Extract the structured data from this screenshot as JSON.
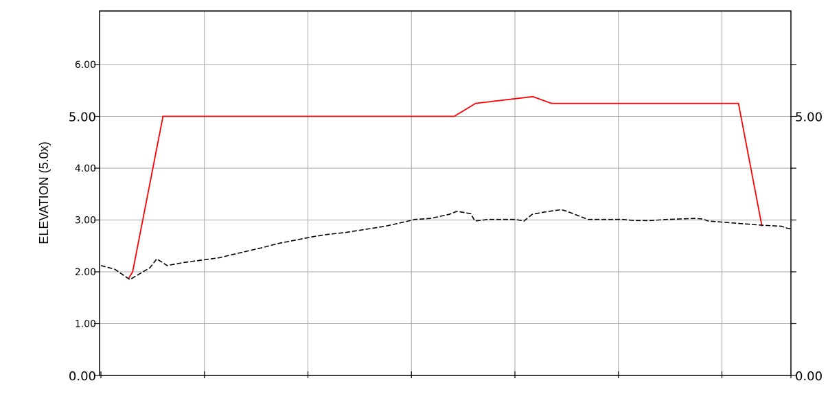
{
  "chart_data": {
    "type": "line",
    "ylabel": "ELEVATION (5.0x)",
    "xlim": [
      0,
      100
    ],
    "ylim": [
      0,
      7
    ],
    "grid": true,
    "left_ticks": [
      {
        "value": 0,
        "label": "0.00",
        "size": "big"
      },
      {
        "value": 1,
        "label": "1.00",
        "size": "small"
      },
      {
        "value": 2,
        "label": "2.00",
        "size": "small"
      },
      {
        "value": 3,
        "label": "3.00",
        "size": "small"
      },
      {
        "value": 4,
        "label": "4.00",
        "size": "small"
      },
      {
        "value": 5,
        "label": "5.00",
        "size": "big"
      },
      {
        "value": 6,
        "label": "6.00",
        "size": "small"
      }
    ],
    "right_ticks": [
      {
        "value": 0,
        "label": "0.00"
      },
      {
        "value": 1,
        "label": ""
      },
      {
        "value": 2,
        "label": ""
      },
      {
        "value": 3,
        "label": ""
      },
      {
        "value": 4,
        "label": ""
      },
      {
        "value": 5,
        "label": "5.00"
      },
      {
        "value": 6,
        "label": ""
      }
    ],
    "x_ticks": [
      0,
      15,
      30,
      45,
      60,
      75,
      90,
      100
    ],
    "series": [
      {
        "color": "#ff0000",
        "dash": "solid",
        "points": [
          [
            4.0,
            1.87
          ],
          [
            4.6,
            2.0
          ],
          [
            9.0,
            5.0
          ],
          [
            51.2,
            5.0
          ],
          [
            54.3,
            5.25
          ],
          [
            62.6,
            5.38
          ],
          [
            65.3,
            5.25
          ],
          [
            92.4,
            5.25
          ],
          [
            95.8,
            2.88
          ]
        ]
      },
      {
        "color": "#000000",
        "dash": "dashed",
        "points": [
          [
            0.0,
            2.12
          ],
          [
            2.0,
            2.05
          ],
          [
            4.2,
            1.85
          ],
          [
            7.1,
            2.08
          ],
          [
            8.1,
            2.25
          ],
          [
            9.6,
            2.12
          ],
          [
            12.0,
            2.18
          ],
          [
            17.1,
            2.27
          ],
          [
            19.6,
            2.35
          ],
          [
            23.5,
            2.47
          ],
          [
            25.8,
            2.55
          ],
          [
            30.8,
            2.68
          ],
          [
            32.8,
            2.72
          ],
          [
            35.5,
            2.76
          ],
          [
            41.2,
            2.88
          ],
          [
            44.2,
            2.97
          ],
          [
            45.5,
            3.01
          ],
          [
            47.8,
            3.03
          ],
          [
            50.5,
            3.11
          ],
          [
            51.6,
            3.17
          ],
          [
            53.6,
            3.12
          ],
          [
            54.2,
            2.98
          ],
          [
            56.1,
            3.01
          ],
          [
            60.1,
            3.01
          ],
          [
            61.3,
            2.98
          ],
          [
            62.5,
            3.11
          ],
          [
            64.1,
            3.15
          ],
          [
            66.7,
            3.2
          ],
          [
            67.5,
            3.17
          ],
          [
            70.6,
            3.01
          ],
          [
            75.6,
            3.01
          ],
          [
            77.3,
            2.99
          ],
          [
            79.7,
            2.99
          ],
          [
            82.0,
            3.01
          ],
          [
            86.0,
            3.03
          ],
          [
            87.2,
            3.02
          ],
          [
            88.0,
            2.98
          ],
          [
            95.8,
            2.9
          ],
          [
            98.6,
            2.88
          ],
          [
            99.5,
            2.84
          ],
          [
            100.0,
            2.83
          ]
        ]
      }
    ]
  }
}
